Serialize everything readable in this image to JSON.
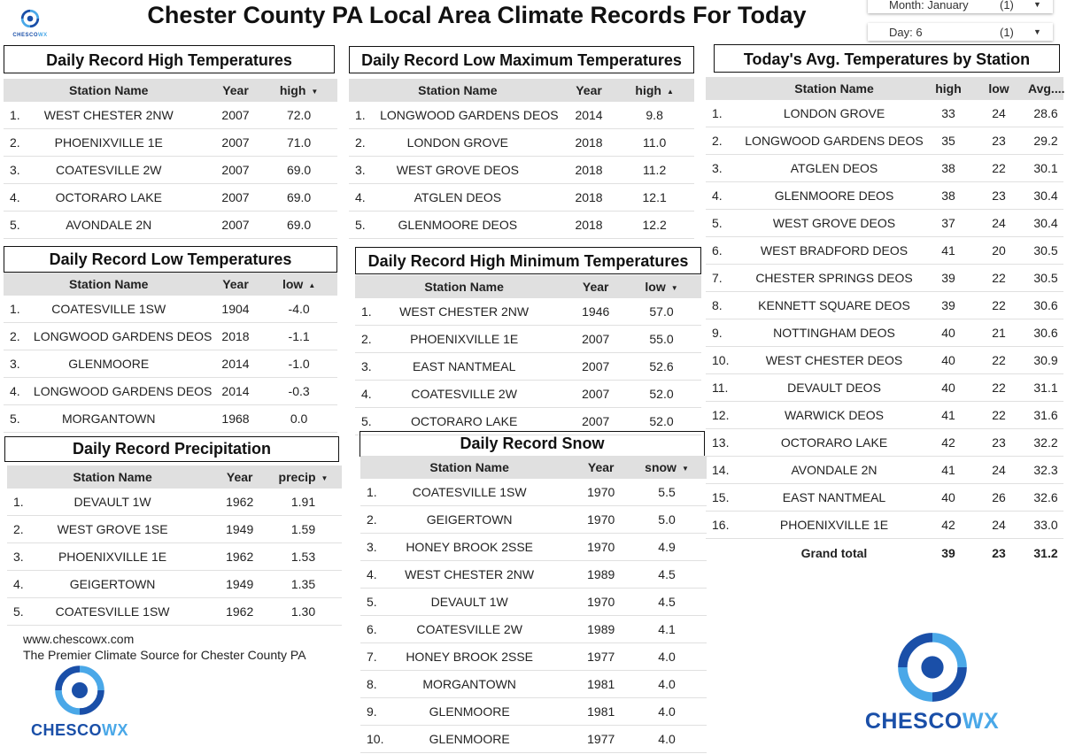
{
  "title": "Chester County PA Local Area Climate Records For Today",
  "filters": {
    "month": {
      "label": "Month:",
      "value": "January",
      "count": "(1)"
    },
    "day": {
      "label": "Day:",
      "value": "6",
      "count": "(1)"
    }
  },
  "logo": {
    "text_a": "CHESCO",
    "text_b": "WX"
  },
  "footer": {
    "url": "www.chescowx.com",
    "tagline": "The Premier Climate Source for Chester County PA"
  },
  "colors": {
    "logo_dark": "#1a4fa8",
    "logo_light": "#4aa8e8",
    "header_bg": "#e0e0e0"
  },
  "tables": [
    {
      "id": "high",
      "title": "Daily Record High Temperatures",
      "headers": [
        "Station Name",
        "Year",
        "high"
      ],
      "sort": "▼",
      "rows": [
        [
          "1.",
          "WEST CHESTER 2NW",
          "2007",
          "72.0"
        ],
        [
          "2.",
          "PHOENIXVILLE 1E",
          "2007",
          "71.0"
        ],
        [
          "3.",
          "COATESVILLE 2W",
          "2007",
          "69.0"
        ],
        [
          "4.",
          "OCTORARO LAKE",
          "2007",
          "69.0"
        ],
        [
          "5.",
          "AVONDALE 2N",
          "2007",
          "69.0"
        ]
      ]
    },
    {
      "id": "lowmax",
      "title": "Daily Record Low Maximum Temperatures",
      "headers": [
        "Station Name",
        "Year",
        "high"
      ],
      "sort": "▲",
      "rows": [
        [
          "1.",
          "LONGWOOD GARDENS DEOS",
          "2014",
          "9.8"
        ],
        [
          "2.",
          "LONDON GROVE",
          "2018",
          "11.0"
        ],
        [
          "3.",
          "WEST GROVE DEOS",
          "2018",
          "11.2"
        ],
        [
          "4.",
          "ATGLEN DEOS",
          "2018",
          "12.1"
        ],
        [
          "5.",
          "GLENMOORE DEOS",
          "2018",
          "12.2"
        ]
      ]
    },
    {
      "id": "low",
      "title": "Daily Record Low Temperatures",
      "headers": [
        "Station Name",
        "Year",
        "low"
      ],
      "sort": "▲",
      "rows": [
        [
          "1.",
          "COATESVILLE 1SW",
          "1904",
          "-4.0"
        ],
        [
          "2.",
          "LONGWOOD GARDENS DEOS",
          "2018",
          "-1.1"
        ],
        [
          "3.",
          "GLENMOORE",
          "2014",
          "-1.0"
        ],
        [
          "4.",
          "LONGWOOD GARDENS DEOS",
          "2014",
          "-0.3"
        ],
        [
          "5.",
          "MORGANTOWN",
          "1968",
          "0.0"
        ]
      ]
    },
    {
      "id": "highmin",
      "title": "Daily Record High Minimum Temperatures",
      "headers": [
        "Station Name",
        "Year",
        "low"
      ],
      "sort": "▼",
      "rows": [
        [
          "1.",
          "WEST CHESTER 2NW",
          "1946",
          "57.0"
        ],
        [
          "2.",
          "PHOENIXVILLE 1E",
          "2007",
          "55.0"
        ],
        [
          "3.",
          "EAST NANTMEAL",
          "2007",
          "52.6"
        ],
        [
          "4.",
          "COATESVILLE 2W",
          "2007",
          "52.0"
        ],
        [
          "5.",
          "OCTORARO LAKE",
          "2007",
          "52.0"
        ]
      ]
    },
    {
      "id": "precip",
      "title": "Daily Record Precipitation",
      "headers": [
        "Station Name",
        "Year",
        "precip"
      ],
      "sort": "▼",
      "rows": [
        [
          "1.",
          "DEVAULT 1W",
          "1962",
          "1.91"
        ],
        [
          "2.",
          "WEST GROVE 1SE",
          "1949",
          "1.59"
        ],
        [
          "3.",
          "PHOENIXVILLE 1E",
          "1962",
          "1.53"
        ],
        [
          "4.",
          "GEIGERTOWN",
          "1949",
          "1.35"
        ],
        [
          "5.",
          "COATESVILLE 1SW",
          "1962",
          "1.30"
        ]
      ]
    },
    {
      "id": "snow",
      "title": "Daily Record Snow",
      "headers": [
        "Station Name",
        "Year",
        "snow"
      ],
      "sort": "▼",
      "rows": [
        [
          "1.",
          "COATESVILLE 1SW",
          "1970",
          "5.5"
        ],
        [
          "2.",
          "GEIGERTOWN",
          "1970",
          "5.0"
        ],
        [
          "3.",
          "HONEY BROOK 2SSE",
          "1970",
          "4.9"
        ],
        [
          "4.",
          "WEST CHESTER 2NW",
          "1989",
          "4.5"
        ],
        [
          "5.",
          "DEVAULT 1W",
          "1970",
          "4.5"
        ],
        [
          "6.",
          "COATESVILLE 2W",
          "1989",
          "4.1"
        ],
        [
          "7.",
          "HONEY BROOK 2SSE",
          "1977",
          "4.0"
        ],
        [
          "8.",
          "MORGANTOWN",
          "1981",
          "4.0"
        ],
        [
          "9.",
          "GLENMOORE",
          "1981",
          "4.0"
        ],
        [
          "10.",
          "GLENMOORE",
          "1977",
          "4.0"
        ]
      ]
    }
  ],
  "avg": {
    "title": "Today's Avg. Temperatures by Station",
    "headers": [
      "Station Name",
      "high",
      "low",
      "Avg...."
    ],
    "rows": [
      [
        "1.",
        "LONDON GROVE",
        "33",
        "24",
        "28.6"
      ],
      [
        "2.",
        "LONGWOOD GARDENS DEOS",
        "35",
        "23",
        "29.2"
      ],
      [
        "3.",
        "ATGLEN DEOS",
        "38",
        "22",
        "30.1"
      ],
      [
        "4.",
        "GLENMOORE DEOS",
        "38",
        "23",
        "30.4"
      ],
      [
        "5.",
        "WEST GROVE DEOS",
        "37",
        "24",
        "30.4"
      ],
      [
        "6.",
        "WEST BRADFORD DEOS",
        "41",
        "20",
        "30.5"
      ],
      [
        "7.",
        "CHESTER SPRINGS DEOS",
        "39",
        "22",
        "30.5"
      ],
      [
        "8.",
        "KENNETT SQUARE DEOS",
        "39",
        "22",
        "30.6"
      ],
      [
        "9.",
        "NOTTINGHAM DEOS",
        "40",
        "21",
        "30.6"
      ],
      [
        "10.",
        "WEST CHESTER DEOS",
        "40",
        "22",
        "30.9"
      ],
      [
        "11.",
        "DEVAULT DEOS",
        "40",
        "22",
        "31.1"
      ],
      [
        "12.",
        "WARWICK DEOS",
        "41",
        "22",
        "31.6"
      ],
      [
        "13.",
        "OCTORARO LAKE",
        "42",
        "23",
        "32.2"
      ],
      [
        "14.",
        "AVONDALE 2N",
        "41",
        "24",
        "32.3"
      ],
      [
        "15.",
        "EAST NANTMEAL",
        "40",
        "26",
        "32.6"
      ],
      [
        "16.",
        "PHOENIXVILLE 1E",
        "42",
        "24",
        "33.0"
      ]
    ],
    "total": {
      "label": "Grand total",
      "high": "39",
      "low": "23",
      "avg": "31.2"
    }
  }
}
